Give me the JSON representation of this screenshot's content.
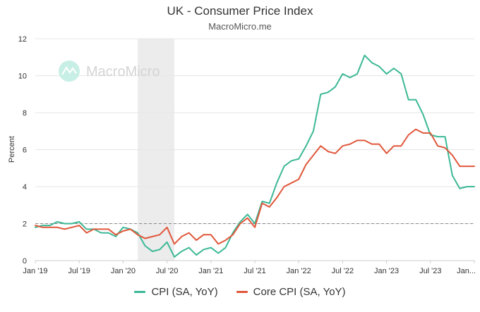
{
  "chart_data": {
    "type": "line",
    "title": "UK - Consumer Price Index",
    "subtitle": "MacroMicro.me",
    "watermark": "MacroMicro",
    "xlabel": "",
    "ylabel": "Percent",
    "ylim": [
      0,
      12
    ],
    "yticks": [
      0,
      2,
      4,
      6,
      8,
      10,
      12
    ],
    "x_tick_labels": [
      "Jan '19",
      "Jul '19",
      "Jan '20",
      "Jul '20",
      "Jan '21",
      "Jul '21",
      "Jan '22",
      "Jul '22",
      "Jan '23",
      "Jul '23",
      "Jan..."
    ],
    "reference_line": 2,
    "shaded_period": {
      "start_month_index": 14,
      "end_month_index": 19
    },
    "x_start": "2019-01",
    "series": [
      {
        "name": "CPI (SA, YoY)",
        "color": "#3cb896",
        "values": [
          1.8,
          1.9,
          1.9,
          2.1,
          2.0,
          2.0,
          2.1,
          1.7,
          1.7,
          1.5,
          1.5,
          1.3,
          1.8,
          1.7,
          1.5,
          0.8,
          0.5,
          0.6,
          1.0,
          0.2,
          0.5,
          0.7,
          0.3,
          0.6,
          0.7,
          0.4,
          0.7,
          1.5,
          2.1,
          2.5,
          2.0,
          3.2,
          3.1,
          4.2,
          5.1,
          5.4,
          5.5,
          6.2,
          7.0,
          9.0,
          9.1,
          9.4,
          10.1,
          9.9,
          10.1,
          11.1,
          10.7,
          10.5,
          10.1,
          10.4,
          10.1,
          8.7,
          8.7,
          7.9,
          6.8,
          6.7,
          6.7,
          4.6,
          3.9,
          4.0,
          4.0
        ]
      },
      {
        "name": "Core CPI (SA, YoY)",
        "color": "#e0573b",
        "values": [
          1.9,
          1.8,
          1.8,
          1.8,
          1.7,
          1.8,
          1.9,
          1.5,
          1.7,
          1.7,
          1.7,
          1.4,
          1.6,
          1.7,
          1.4,
          1.2,
          1.3,
          1.4,
          1.8,
          0.9,
          1.3,
          1.5,
          1.1,
          1.4,
          1.4,
          0.9,
          1.1,
          1.4,
          2.0,
          2.3,
          1.8,
          3.1,
          2.9,
          3.4,
          4.0,
          4.2,
          4.4,
          5.2,
          5.7,
          6.2,
          5.9,
          5.8,
          6.2,
          6.3,
          6.5,
          6.5,
          6.3,
          6.3,
          5.8,
          6.2,
          6.2,
          6.8,
          7.1,
          6.9,
          6.9,
          6.2,
          6.1,
          5.7,
          5.1,
          5.1,
          5.1
        ]
      }
    ]
  }
}
